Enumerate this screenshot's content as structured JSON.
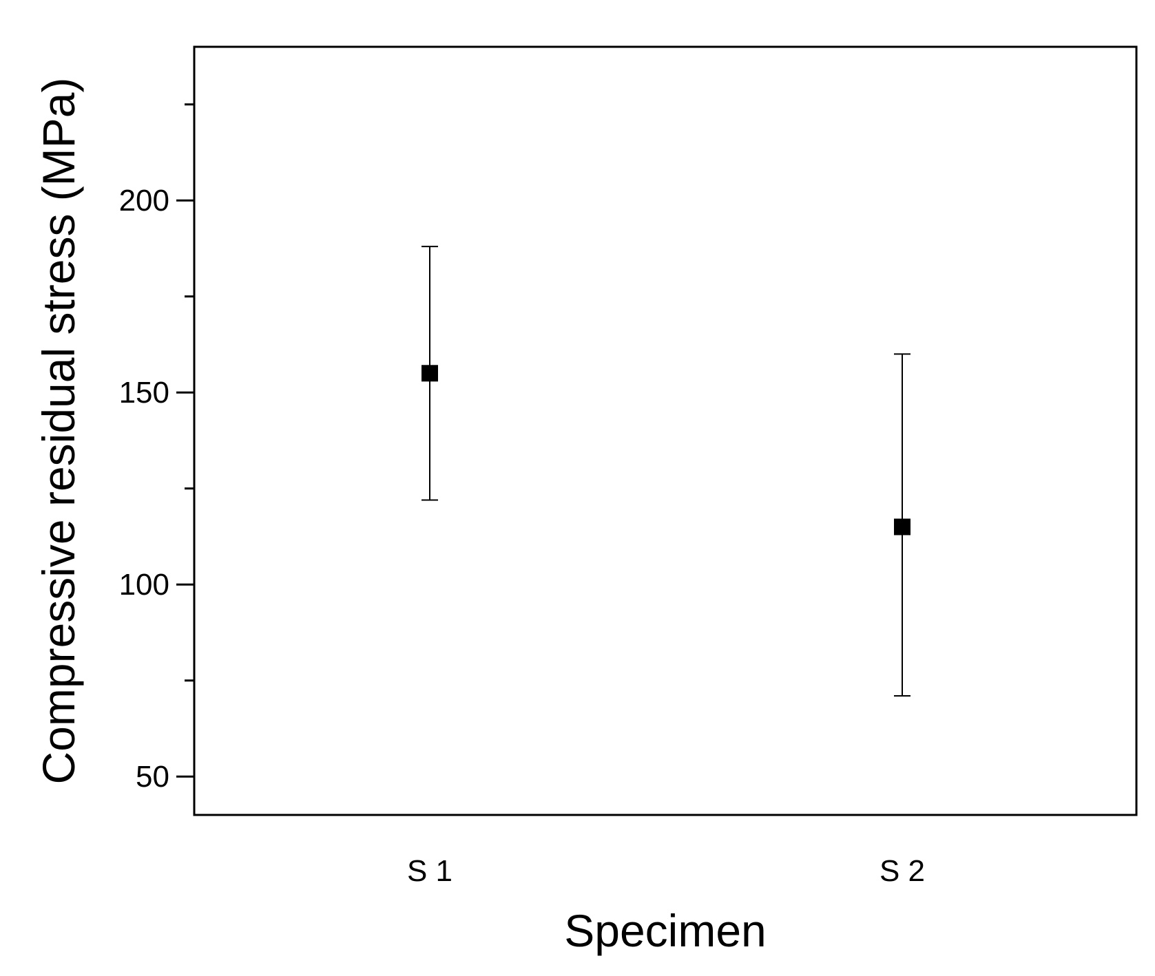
{
  "chart_data": {
    "type": "scatter",
    "xlabel": "Specimen",
    "ylabel": "Compressive residual stress (MPa)",
    "categories": [
      "S 1",
      "S 2"
    ],
    "series": [
      {
        "values": [
          155,
          115
        ],
        "error_low": [
          122,
          71
        ],
        "error_high": [
          188,
          160
        ]
      }
    ],
    "ylim": [
      40,
      240
    ],
    "yticks": [
      50,
      100,
      150,
      200
    ],
    "yticks_minor": [
      75,
      125,
      175,
      225
    ],
    "ytick_labels": [
      "50",
      "100",
      "150",
      "200"
    ],
    "grid": false,
    "legend": "none",
    "marker": "square",
    "color": "#000000"
  }
}
